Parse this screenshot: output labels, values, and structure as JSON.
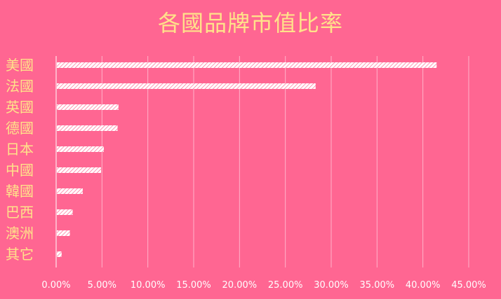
{
  "chart_data": {
    "type": "bar",
    "orientation": "horizontal",
    "title": "各國品牌市值比率",
    "categories": [
      "美國",
      "法國",
      "英國",
      "德國",
      "日本",
      "中國",
      "韓國",
      "巴西",
      "澳洲",
      "其它"
    ],
    "values": [
      41.5,
      28.3,
      6.8,
      6.7,
      5.2,
      4.9,
      2.9,
      1.8,
      1.5,
      0.6
    ],
    "x_ticks": [
      "0.00%",
      "5.00%",
      "10.00%",
      "15.00%",
      "20.00%",
      "25.00%",
      "30.00%",
      "35.00%",
      "40.00%",
      "45.00%"
    ],
    "xlim": [
      0,
      45
    ],
    "grid": true,
    "legend": "none",
    "colors": {
      "background": "#ff6692",
      "bar_fill": "#ffffff",
      "bar_hatch": "#ff6692",
      "title": "#ffe28a",
      "category_label": "#ffe28a",
      "tick_label": "#ffffff",
      "grid": "#ffb3c9"
    }
  }
}
